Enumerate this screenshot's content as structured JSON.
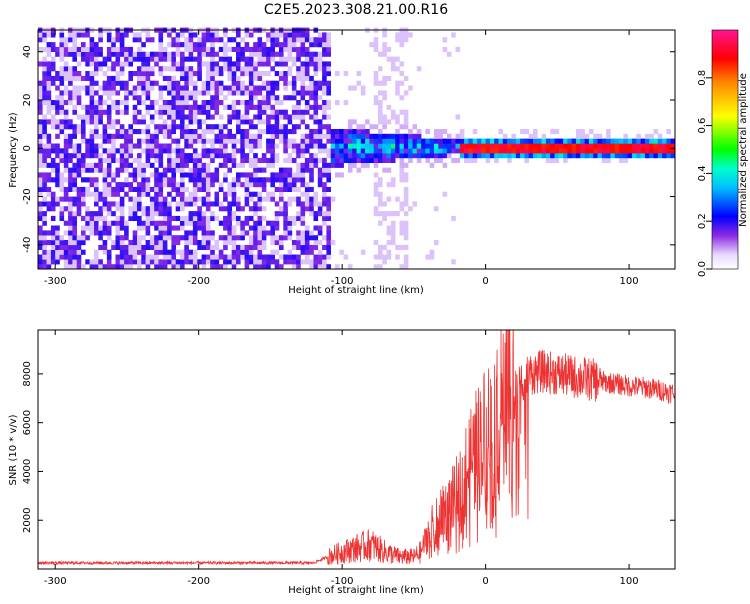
{
  "title": "C2E5.2023.308.21.00.R16",
  "chart_data": [
    {
      "type": "heatmap",
      "xlabel": "Height of straight line (km)",
      "ylabel": "Frequency (Hz)",
      "xlim": [
        -312,
        132
      ],
      "ylim": [
        -50,
        49
      ],
      "xticks": [
        -300,
        -200,
        -100,
        0,
        100
      ],
      "yticks": [
        -40,
        -20,
        0,
        20,
        40
      ],
      "colorbar": {
        "label": "Normalized spectral amplitude",
        "range": [
          0,
          1
        ],
        "ticks": [
          "0.0",
          "0.2",
          "0.4",
          "0.6",
          "0.8"
        ],
        "colormap": "rainbow (white/violet low → red/magenta high)"
      },
      "regions": [
        {
          "x": [
            -312,
            -108
          ],
          "description": "broadband noise, violet/purple, amplitude ~0.1-0.2"
        },
        {
          "x": [
            -108,
            -20
          ],
          "freq_center": 0,
          "freq_halfwidth": 8,
          "peak_amplitude": 0.5
        },
        {
          "x": [
            -20,
            132
          ],
          "freq_center": 0,
          "freq_halfwidth": 2,
          "peak_amplitude": 1.0
        }
      ]
    },
    {
      "type": "line",
      "xlabel": "Height of straight line (km)",
      "ylabel": "SNR (10 * v/v)",
      "xlim": [
        -312,
        132
      ],
      "ylim": [
        0,
        9800
      ],
      "xticks": [
        -300,
        -200,
        -100,
        0,
        100
      ],
      "yticks": [
        2000,
        4000,
        6000,
        8000
      ],
      "grid": false,
      "color": "#ee3333",
      "envelope_x": [
        -312,
        -120,
        -110,
        -100,
        -90,
        -80,
        -70,
        -60,
        -50,
        -45,
        -40,
        -30,
        -20,
        -10,
        0,
        10,
        20,
        30,
        40,
        50,
        60,
        70,
        80,
        90,
        100,
        110,
        120,
        132
      ],
      "envelope_mean": [
        250,
        250,
        500,
        700,
        850,
        1000,
        700,
        500,
        500,
        700,
        1500,
        2200,
        3000,
        4500,
        5500,
        6500,
        7400,
        8000,
        8100,
        8000,
        7900,
        7800,
        7700,
        7600,
        7500,
        7450,
        7350,
        7200
      ]
    }
  ]
}
